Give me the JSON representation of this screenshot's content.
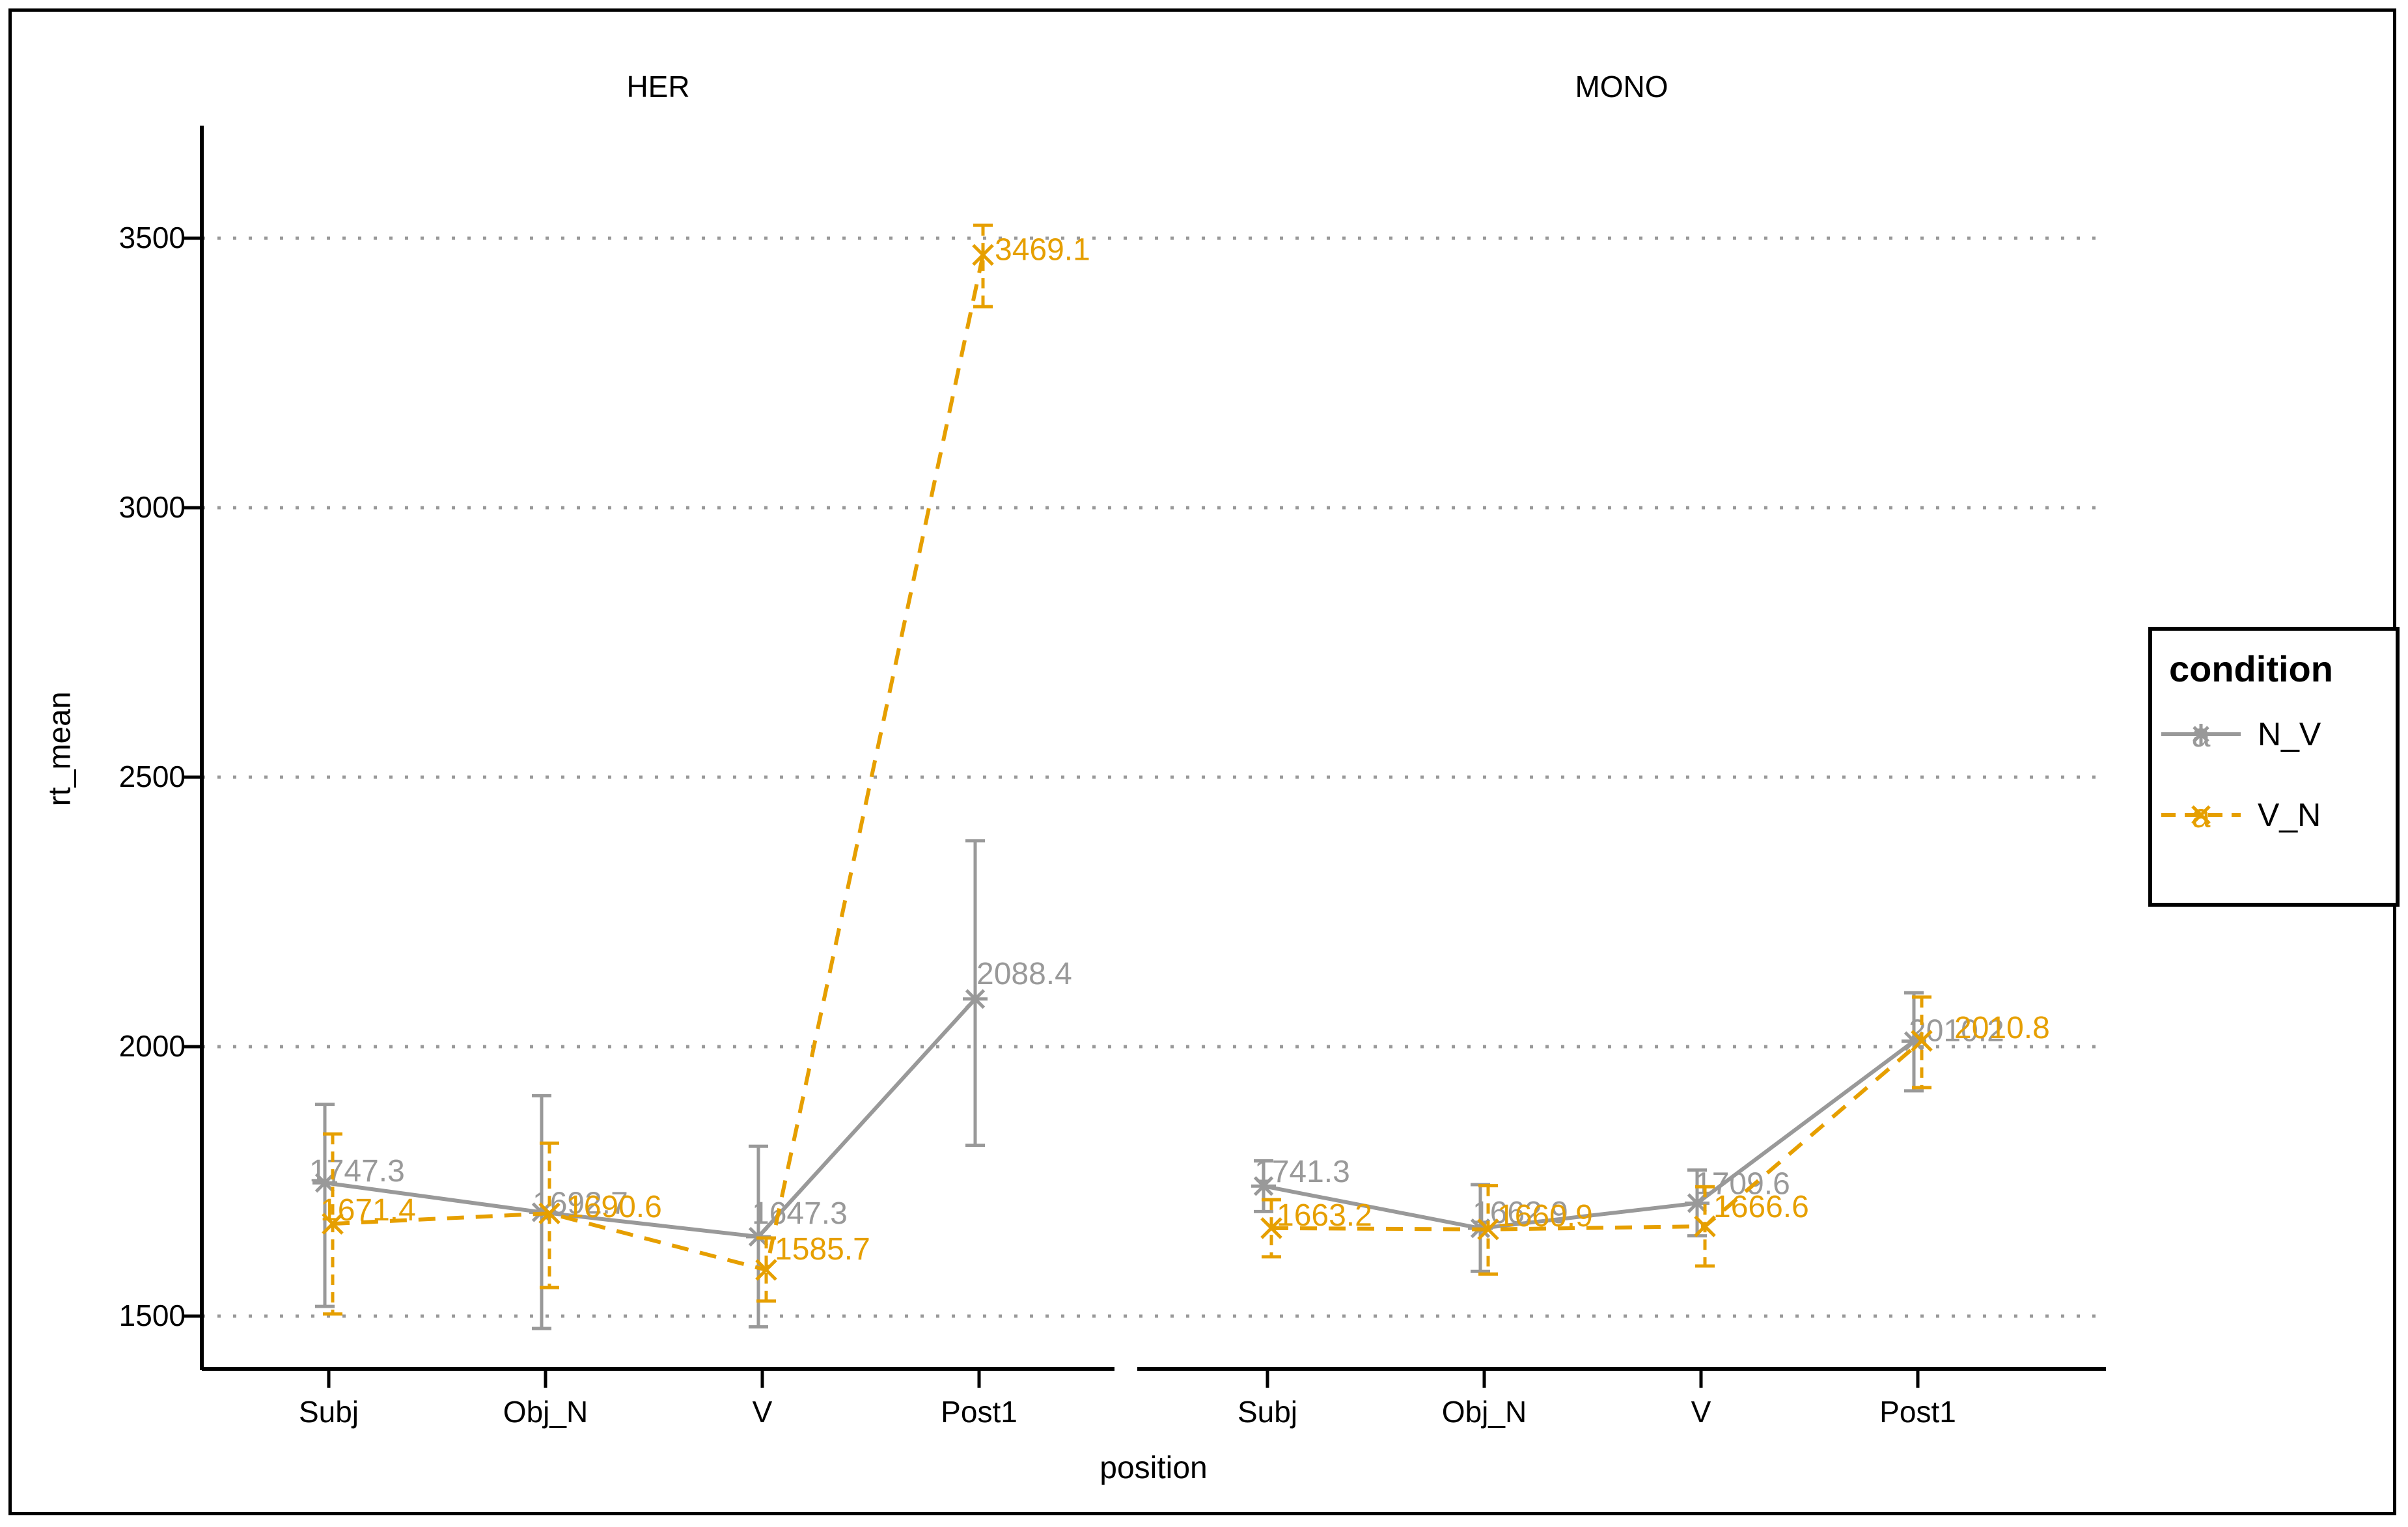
{
  "figure": {
    "facet_labels": [
      "HER",
      "MONO"
    ],
    "axis": {
      "x_title": "position",
      "y_title": "rt_mean"
    },
    "y_ticks": [
      "1500",
      "2000",
      "2500",
      "3000",
      "3500"
    ],
    "x_categories": [
      "Subj",
      "Obj_N",
      "V",
      "Post1"
    ],
    "legend": {
      "title": "condition",
      "entries": [
        {
          "label": "N_V",
          "color": "#999999",
          "linestyle": "solid",
          "marker": "asterisk",
          "glyph_letter": "a"
        },
        {
          "label": "V_N",
          "color": "#E69F00",
          "linestyle": "dashed",
          "marker": "x",
          "glyph_letter": "a"
        }
      ]
    },
    "colors": {
      "n_v": "#999999",
      "v_n": "#E69F00",
      "gridline": "#999999",
      "axis_line": "#000000",
      "text": "#000000",
      "background": "#ffffff"
    }
  },
  "chart_data": {
    "type": "line",
    "title": "",
    "xlabel": "position",
    "ylabel": "rt_mean",
    "categories": [
      "Subj",
      "Obj_N",
      "V",
      "Post1"
    ],
    "y_ticks": [
      1500,
      2000,
      2500,
      3000,
      3500
    ],
    "ylim": [
      1400,
      3710
    ],
    "grid": "dotted-horizontal-major",
    "legend_position": "right",
    "facets": [
      {
        "name": "HER",
        "series": [
          {
            "name": "N_V",
            "color": "#999999",
            "linestyle": "solid",
            "marker": "asterisk",
            "points": [
              {
                "category": "Subj",
                "value": 1747.3,
                "label": "1747.3",
                "ci_low": 1518,
                "ci_high": 1893,
                "label_dx": -24,
                "label_dy": -2
              },
              {
                "category": "Obj_N",
                "value": 1692.7,
                "label": "1692.7",
                "ci_low": 1477,
                "ci_high": 1909,
                "label_dx": -14,
                "label_dy": 2
              },
              {
                "category": "V",
                "value": 1647.3,
                "label": "1647.3",
                "ci_low": 1480,
                "ci_high": 1815,
                "label_dx": -10,
                "label_dy": -20
              },
              {
                "category": "Post1",
                "value": 2088.4,
                "label": "2088.4",
                "ci_low": 1817,
                "ci_high": 2382,
                "label_dx": 2,
                "label_dy": -23
              }
            ]
          },
          {
            "name": "V_N",
            "color": "#E69F00",
            "linestyle": "dashed",
            "marker": "x",
            "points": [
              {
                "category": "Subj",
                "value": 1671.4,
                "label": "1671.4",
                "ci_low": 1504,
                "ci_high": 1838,
                "label_dx": -19,
                "label_dy": -5
              },
              {
                "category": "Obj_N",
                "value": 1690.6,
                "label": "1690.6",
                "ci_low": 1553,
                "ci_high": 1821,
                "label_dx": 26,
                "label_dy": 6
              },
              {
                "category": "V",
                "value": 1585.7,
                "label": "1585.7",
                "ci_low": 1528,
                "ci_high": 1645,
                "label_dx": 13,
                "label_dy": -16
              },
              {
                "category": "Post1",
                "value": 3469.1,
                "label": "3469.1",
                "ci_low": 3373,
                "ci_high": 3524,
                "label_dx": 18,
                "label_dy": 8
              }
            ]
          }
        ]
      },
      {
        "name": "MONO",
        "series": [
          {
            "name": "N_V",
            "color": "#999999",
            "linestyle": "solid",
            "marker": "asterisk",
            "points": [
              {
                "category": "Subj",
                "value": 1741.3,
                "label": "1741.3",
                "ci_low": 1694,
                "ci_high": 1788,
                "label_dx": -14,
                "label_dy": -6
              },
              {
                "category": "Obj_N",
                "value": 1662.9,
                "label": "1662.9",
                "ci_low": 1583,
                "ci_high": 1744,
                "label_dx": -12,
                "label_dy": -8
              },
              {
                "category": "V",
                "value": 1709.6,
                "label": "1709.6",
                "ci_low": 1649,
                "ci_high": 1771,
                "label_dx": -4,
                "label_dy": -14
              },
              {
                "category": "Post1",
                "value": 2010.2,
                "label": "2010.2",
                "ci_low": 1918,
                "ci_high": 2100,
                "label_dx": -8,
                "label_dy": 0
              }
            ]
          },
          {
            "name": "V_N",
            "color": "#E69F00",
            "linestyle": "dashed",
            "marker": "x",
            "points": [
              {
                "category": "Subj",
                "value": 1663.2,
                "label": "1663.2",
                "ci_low": 1610,
                "ci_high": 1716,
                "label_dx": 8,
                "label_dy": -4
              },
              {
                "category": "Obj_N",
                "value": 1660.9,
                "label": "1660.9",
                "ci_low": 1578,
                "ci_high": 1742,
                "label_dx": 14,
                "label_dy": -5
              },
              {
                "category": "V",
                "value": 1666.6,
                "label": "1666.6",
                "ci_low": 1593,
                "ci_high": 1740,
                "label_dx": 13,
                "label_dy": -14
              },
              {
                "category": "Post1",
                "value": 2010.8,
                "label": "2010.8",
                "ci_low": 1924,
                "ci_high": 2092,
                "label_dx": 50,
                "label_dy": -4
              }
            ]
          }
        ]
      }
    ]
  }
}
